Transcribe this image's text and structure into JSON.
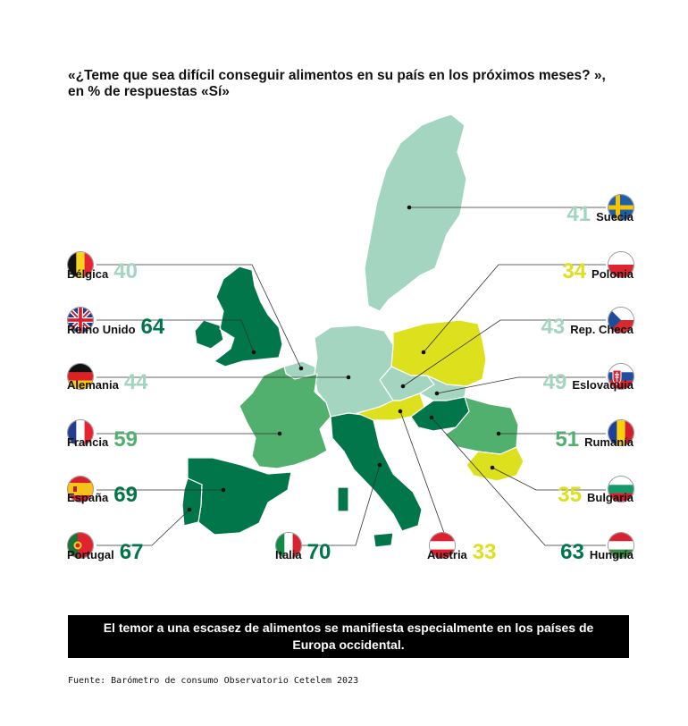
{
  "title_line1": "«¿Teme que sea difícil conseguir alimentos en su país en los próximos meses? »,",
  "title_line2": "en % de respuestas «Sí»",
  "banner": "El temor a una escasez de alimentos se manifiesta especialmente en los países de Europa occidental.",
  "source": "Fuente: Barómetro de consumo Observatorio Cetelem 2023",
  "colors": {
    "low": "#dde01c",
    "mid_low": "#a3d5c0",
    "mid_high": "#52b06e",
    "high": "#00764a"
  },
  "chart_data": {
    "type": "choropleth-map",
    "title": "«¿Teme que sea difícil conseguir alimentos en su país en los próximos meses? », en % de respuestas «Sí»",
    "countries": [
      {
        "key": "suecia",
        "name": "Suecia",
        "value": 41,
        "flag": "sweden-flag"
      },
      {
        "key": "belgica",
        "name": "Bélgica",
        "value": 40,
        "flag": "belgium-flag"
      },
      {
        "key": "polonia",
        "name": "Polonia",
        "value": 34,
        "flag": "poland-flag"
      },
      {
        "key": "reinounido",
        "name": "Reino Unido",
        "value": 64,
        "flag": "uk-flag"
      },
      {
        "key": "repcheca",
        "name": "Rep. Checa",
        "value": 43,
        "flag": "czech-flag"
      },
      {
        "key": "alemania",
        "name": "Alemania",
        "value": 44,
        "flag": "germany-flag"
      },
      {
        "key": "eslovaquia",
        "name": "Eslovaquia",
        "value": 49,
        "flag": "slovakia-flag"
      },
      {
        "key": "francia",
        "name": "Francia",
        "value": 59,
        "flag": "france-flag"
      },
      {
        "key": "rumania",
        "name": "Rumanía",
        "value": 51,
        "flag": "romania-flag"
      },
      {
        "key": "espana",
        "name": "España",
        "value": 69,
        "flag": "spain-flag"
      },
      {
        "key": "bulgaria",
        "name": "Bulgaria",
        "value": 35,
        "flag": "bulgaria-flag"
      },
      {
        "key": "portugal",
        "name": "Portugal",
        "value": 67,
        "flag": "portugal-flag"
      },
      {
        "key": "italia",
        "name": "Italia",
        "value": 70,
        "flag": "italy-flag"
      },
      {
        "key": "austria",
        "name": "Austria",
        "value": 33,
        "flag": "austria-flag"
      },
      {
        "key": "hungria",
        "name": "Hungría",
        "value": 63,
        "flag": "hungary-flag"
      }
    ]
  }
}
